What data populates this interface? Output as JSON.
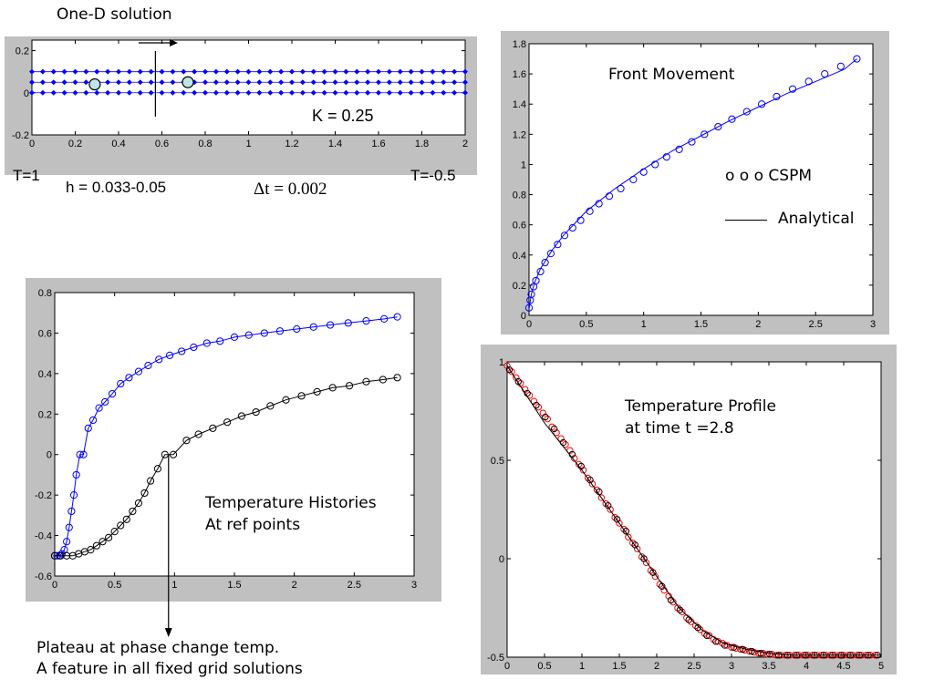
{
  "labels": {
    "one_d_title": "One-D solution",
    "k_value": "K = 0.25",
    "t_left": "T=1",
    "t_right": "T=-0.5",
    "h_value": "h = 0.033-0.05",
    "dt_value": "Δt = 0.002",
    "front_title": "Front Movement",
    "cspm_legend": "o o o  CSPM",
    "analytical_legend": "Analytical",
    "hist_title_1": "Temperature Histories",
    "hist_title_2": "At ref points",
    "profile_title_1": "Temperature Profile",
    "profile_title_2": "at time t =2.8",
    "plateau_1": "Plateau at phase change temp.",
    "plateau_2": "A feature in all fixed grid solutions"
  },
  "colors": {
    "blue": "#0000ff",
    "red": "#ff0000",
    "black": "#000000",
    "frame": "#c0c0c0",
    "particle": "#bfe6e6"
  },
  "chart_data": [
    {
      "id": "grid",
      "type": "scatter",
      "xlim": [
        0,
        2
      ],
      "ylim": [
        -0.2,
        0.25
      ],
      "xticks": [
        0,
        0.2,
        0.4,
        0.6,
        0.8,
        1,
        1.2,
        1.4,
        1.6,
        1.8,
        2
      ],
      "yticks": [
        -0.2,
        0,
        0.2
      ],
      "rows_y": [
        0.1,
        0.05,
        0
      ],
      "points_per_row": 41,
      "marked_particles": [
        [
          0.29,
          0.04
        ],
        [
          0.72,
          0.05
        ]
      ],
      "front_line_x": 0.57
    },
    {
      "id": "front",
      "type": "line",
      "title": "Front Movement",
      "xlim": [
        0,
        3
      ],
      "ylim": [
        0,
        1.8
      ],
      "xticks": [
        0,
        0.5,
        1,
        1.5,
        2,
        2.5,
        3
      ],
      "yticks": [
        0,
        0.2,
        0.4,
        0.6,
        0.8,
        1,
        1.2,
        1.4,
        1.6,
        1.8
      ],
      "series": [
        {
          "name": "CSPM",
          "style": "markers",
          "color": "#0000ff",
          "x": [
            0,
            0.01,
            0.02,
            0.04,
            0.06,
            0.1,
            0.14,
            0.19,
            0.25,
            0.31,
            0.38,
            0.45,
            0.53,
            0.61,
            0.7,
            0.8,
            0.91,
            1.0,
            1.1,
            1.2,
            1.31,
            1.42,
            1.53,
            1.65,
            1.77,
            1.9,
            2.03,
            2.16,
            2.3,
            2.44,
            2.58,
            2.72,
            2.86
          ],
          "y": [
            0.05,
            0.1,
            0.14,
            0.19,
            0.23,
            0.29,
            0.35,
            0.41,
            0.47,
            0.53,
            0.58,
            0.63,
            0.69,
            0.74,
            0.79,
            0.84,
            0.9,
            0.95,
            1.0,
            1.05,
            1.1,
            1.15,
            1.2,
            1.25,
            1.3,
            1.35,
            1.4,
            1.45,
            1.5,
            1.55,
            1.6,
            1.65,
            1.7
          ]
        },
        {
          "name": "Analytical",
          "style": "line",
          "color": "#0000ff",
          "x": [
            0,
            0.02,
            0.05,
            0.1,
            0.2,
            0.3,
            0.5,
            0.75,
            1,
            1.25,
            1.5,
            1.75,
            2,
            2.25,
            2.5,
            2.75,
            2.86
          ],
          "y": [
            0.04,
            0.14,
            0.22,
            0.31,
            0.43,
            0.53,
            0.69,
            0.84,
            0.97,
            1.09,
            1.19,
            1.29,
            1.38,
            1.47,
            1.55,
            1.63,
            1.7
          ]
        }
      ]
    },
    {
      "id": "hist",
      "type": "line",
      "xlim": [
        0,
        3
      ],
      "ylim": [
        -0.6,
        0.8
      ],
      "xticks": [
        0,
        0.5,
        1,
        1.5,
        2,
        2.5,
        3
      ],
      "yticks": [
        -0.6,
        -0.4,
        -0.2,
        0,
        0.2,
        0.4,
        0.6,
        0.8
      ],
      "series": [
        {
          "color": "#0000ff",
          "x": [
            0,
            0.02,
            0.04,
            0.06,
            0.08,
            0.1,
            0.12,
            0.14,
            0.16,
            0.18,
            0.21,
            0.24,
            0.28,
            0.32,
            0.37,
            0.42,
            0.48,
            0.55,
            0.62,
            0.7,
            0.78,
            0.87,
            0.96,
            1.06,
            1.16,
            1.27,
            1.38,
            1.5,
            1.62,
            1.75,
            1.88,
            2.02,
            2.16,
            2.3,
            2.45,
            2.6,
            2.75,
            2.86
          ],
          "y": [
            -0.5,
            -0.5,
            -0.5,
            -0.49,
            -0.47,
            -0.43,
            -0.36,
            -0.28,
            -0.2,
            -0.1,
            0,
            0,
            0.13,
            0.17,
            0.23,
            0.26,
            0.3,
            0.35,
            0.38,
            0.41,
            0.44,
            0.47,
            0.49,
            0.51,
            0.53,
            0.55,
            0.56,
            0.58,
            0.59,
            0.6,
            0.61,
            0.62,
            0.63,
            0.64,
            0.65,
            0.66,
            0.67,
            0.68
          ]
        },
        {
          "color": "#000000",
          "x": [
            0,
            0.05,
            0.1,
            0.15,
            0.2,
            0.25,
            0.3,
            0.35,
            0.4,
            0.45,
            0.5,
            0.55,
            0.6,
            0.65,
            0.7,
            0.75,
            0.8,
            0.86,
            0.92,
            0.99,
            1.1,
            1.2,
            1.32,
            1.44,
            1.56,
            1.68,
            1.8,
            1.93,
            2.06,
            2.19,
            2.32,
            2.46,
            2.6,
            2.74,
            2.86
          ],
          "y": [
            -0.5,
            -0.5,
            -0.5,
            -0.5,
            -0.49,
            -0.48,
            -0.47,
            -0.45,
            -0.43,
            -0.41,
            -0.38,
            -0.35,
            -0.32,
            -0.28,
            -0.24,
            -0.19,
            -0.13,
            -0.07,
            0,
            0,
            0.07,
            0.1,
            0.13,
            0.16,
            0.19,
            0.21,
            0.24,
            0.27,
            0.29,
            0.31,
            0.33,
            0.34,
            0.36,
            0.37,
            0.38
          ]
        }
      ],
      "arrow_x": 0.95
    },
    {
      "id": "profile",
      "type": "line",
      "xlim": [
        0,
        5
      ],
      "ylim": [
        -0.5,
        1
      ],
      "xticks": [
        0,
        0.5,
        1,
        1.5,
        2,
        2.5,
        3,
        3.5,
        4,
        4.5,
        5
      ],
      "yticks": [
        -0.5,
        0,
        0.5,
        1
      ],
      "series": [
        {
          "color": "#ff0000",
          "style": "markers",
          "x": [
            0,
            0.06,
            0.12,
            0.18,
            0.24,
            0.3,
            0.36,
            0.42,
            0.48,
            0.54,
            0.6,
            0.66,
            0.72,
            0.78,
            0.84,
            0.9,
            0.96,
            1.02,
            1.08,
            1.14,
            1.2,
            1.26,
            1.32,
            1.38,
            1.44,
            1.5,
            1.56,
            1.62,
            1.68,
            1.74,
            1.8,
            1.86,
            1.92,
            1.98,
            2.04,
            2.1,
            2.16,
            2.22,
            2.28,
            2.34,
            2.4,
            2.46,
            2.52,
            2.58,
            2.64,
            2.7,
            2.76,
            2.82,
            2.88,
            2.94,
            3.0,
            3.06,
            3.12,
            3.18,
            3.24,
            3.3,
            3.36,
            3.42,
            3.48,
            3.54,
            3.6,
            3.66,
            3.72,
            3.78,
            3.84,
            3.9,
            3.96,
            4.02,
            4.08,
            4.14,
            4.2,
            4.26,
            4.32,
            4.38,
            4.44,
            4.5,
            4.56,
            4.62,
            4.68,
            4.74,
            4.8,
            4.86,
            4.92
          ],
          "y": [
            0.98,
            0.95,
            0.92,
            0.89,
            0.86,
            0.83,
            0.8,
            0.77,
            0.74,
            0.71,
            0.67,
            0.64,
            0.61,
            0.58,
            0.55,
            0.51,
            0.48,
            0.45,
            0.41,
            0.38,
            0.35,
            0.31,
            0.28,
            0.25,
            0.21,
            0.18,
            0.15,
            0.11,
            0.08,
            0.05,
            0.01,
            -0.02,
            -0.06,
            -0.09,
            -0.13,
            -0.16,
            -0.19,
            -0.22,
            -0.25,
            -0.27,
            -0.3,
            -0.32,
            -0.34,
            -0.36,
            -0.38,
            -0.39,
            -0.41,
            -0.42,
            -0.43,
            -0.44,
            -0.45,
            -0.455,
            -0.46,
            -0.465,
            -0.47,
            -0.475,
            -0.48,
            -0.48,
            -0.485,
            -0.485,
            -0.49,
            -0.49,
            -0.49,
            -0.49,
            -0.49,
            -0.49,
            -0.49,
            -0.49,
            -0.49,
            -0.49,
            -0.49,
            -0.49,
            -0.49,
            -0.49,
            -0.49,
            -0.49,
            -0.49,
            -0.49,
            -0.49,
            -0.49,
            -0.49,
            -0.49,
            -0.49
          ]
        },
        {
          "color": "#000000",
          "style": "markers",
          "x": [
            0.03,
            0.15,
            0.27,
            0.39,
            0.51,
            0.63,
            0.75,
            0.87,
            0.99,
            1.11,
            1.23,
            1.35,
            1.47,
            1.59,
            1.71,
            1.83,
            1.95,
            2.07,
            2.19,
            2.31,
            2.43,
            2.55,
            2.67,
            2.79,
            2.91,
            3.03,
            3.15,
            3.27,
            3.39,
            3.51,
            3.63,
            3.75,
            3.87,
            3.99,
            4.11,
            4.23,
            4.35,
            4.47,
            4.59,
            4.71,
            4.83,
            4.95
          ],
          "y": [
            0.96,
            0.9,
            0.84,
            0.78,
            0.72,
            0.66,
            0.59,
            0.53,
            0.47,
            0.4,
            0.34,
            0.27,
            0.2,
            0.14,
            0.07,
            0.0,
            -0.07,
            -0.14,
            -0.21,
            -0.26,
            -0.31,
            -0.35,
            -0.39,
            -0.42,
            -0.44,
            -0.45,
            -0.46,
            -0.47,
            -0.48,
            -0.485,
            -0.49,
            -0.49,
            -0.49,
            -0.49,
            -0.49,
            -0.49,
            -0.49,
            -0.49,
            -0.49,
            -0.49,
            -0.49,
            -0.49
          ]
        },
        {
          "color": "#000000",
          "style": "line",
          "x": [
            0,
            0.5,
            1,
            1.5,
            2,
            2.3,
            2.6,
            2.9,
            3.2,
            3.5,
            3.8,
            4.2,
            5
          ],
          "y": [
            0.98,
            0.69,
            0.45,
            0.18,
            -0.09,
            -0.25,
            -0.36,
            -0.43,
            -0.46,
            -0.48,
            -0.49,
            -0.49,
            -0.49
          ]
        }
      ]
    }
  ]
}
